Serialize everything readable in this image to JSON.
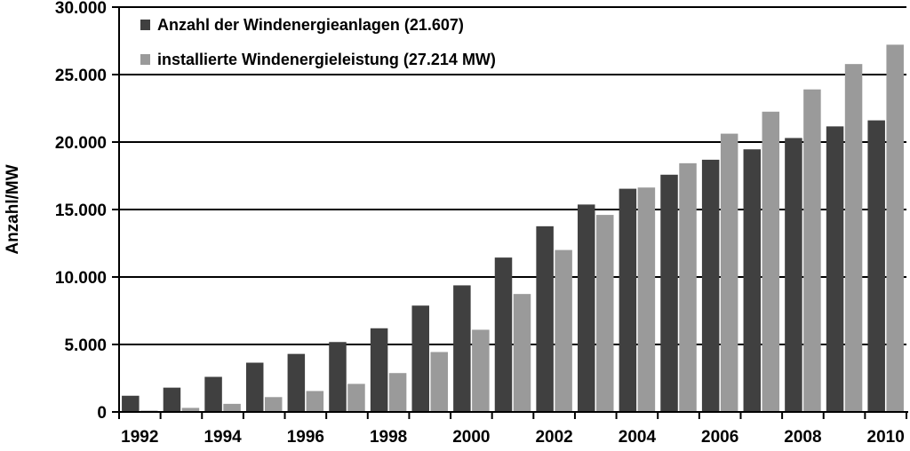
{
  "chart_data": {
    "type": "bar",
    "ylabel": "Anzahl/MW",
    "xlabel": "",
    "ylim": [
      0,
      30000
    ],
    "ytick_values": [
      0,
      5000,
      10000,
      15000,
      20000,
      25000,
      30000
    ],
    "ytick_labels": [
      "0",
      "5.000",
      "10.000",
      "15.000",
      "20.000",
      "25.000",
      "30.000"
    ],
    "categories": [
      "1992",
      "1993",
      "1994",
      "1995",
      "1996",
      "1997",
      "1998",
      "1999",
      "2000",
      "2001",
      "2002",
      "2003",
      "2004",
      "2005",
      "2006",
      "2007",
      "2008",
      "2009",
      "2010"
    ],
    "xtick_labels": [
      "1992",
      "",
      "1994",
      "",
      "1996",
      "",
      "1998",
      "",
      "2000",
      "",
      "2002",
      "",
      "2004",
      "",
      "2006",
      "",
      "2008",
      "",
      "2010"
    ],
    "grid": true,
    "legend_position": "top-left",
    "series": [
      {
        "name": "Anzahl der Windenergieanlagen (21.607)",
        "color": "#404040",
        "values": [
          1200,
          1800,
          2600,
          3650,
          4300,
          5180,
          6200,
          7880,
          9380,
          11440,
          13760,
          15370,
          16540,
          17580,
          18690,
          19460,
          20300,
          21160,
          21607
        ]
      },
      {
        "name": "installierte Windenergieleistung (27.214 MW)",
        "color": "#9a9a9a",
        "values": [
          100,
          300,
          600,
          1100,
          1550,
          2080,
          2880,
          4440,
          6090,
          8740,
          12000,
          14600,
          16630,
          18430,
          20620,
          22250,
          23900,
          25780,
          27214
        ]
      }
    ]
  }
}
